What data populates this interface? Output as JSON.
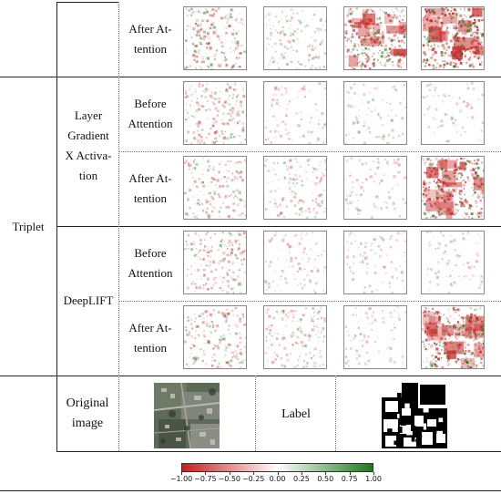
{
  "method_group": "Triplet",
  "methods": [
    {
      "name": "Layer\nGradient\nX Activa-\ntion"
    },
    {
      "name": "DeepLIFT"
    }
  ],
  "rows": [
    {
      "label": "After At-\ntention",
      "intensity": [
        0.55,
        0.3,
        0.8,
        1.0
      ]
    },
    {
      "label": "Before\nAttention",
      "intensity": [
        0.45,
        0.1,
        0.08,
        0.03
      ]
    },
    {
      "label": "After At-\ntention",
      "intensity": [
        0.4,
        0.3,
        0.08,
        0.95
      ]
    },
    {
      "label": "Before\nAttention",
      "intensity": [
        0.45,
        0.12,
        0.08,
        0.04
      ]
    },
    {
      "label": "After At-\ntention",
      "intensity": [
        0.45,
        0.35,
        0.1,
        0.95
      ]
    }
  ],
  "bottom": {
    "original_label": "Original\nimage",
    "label_text": "Label"
  },
  "colorbar": {
    "ticks": [
      "−1.00",
      "−0.75",
      "−0.50",
      "−0.25",
      "0.00",
      "0.25",
      "0.50",
      "0.75",
      "1.00"
    ],
    "low_color": "#c81e1e",
    "mid_color": "#ffffff",
    "high_color": "#1e7a1e"
  }
}
